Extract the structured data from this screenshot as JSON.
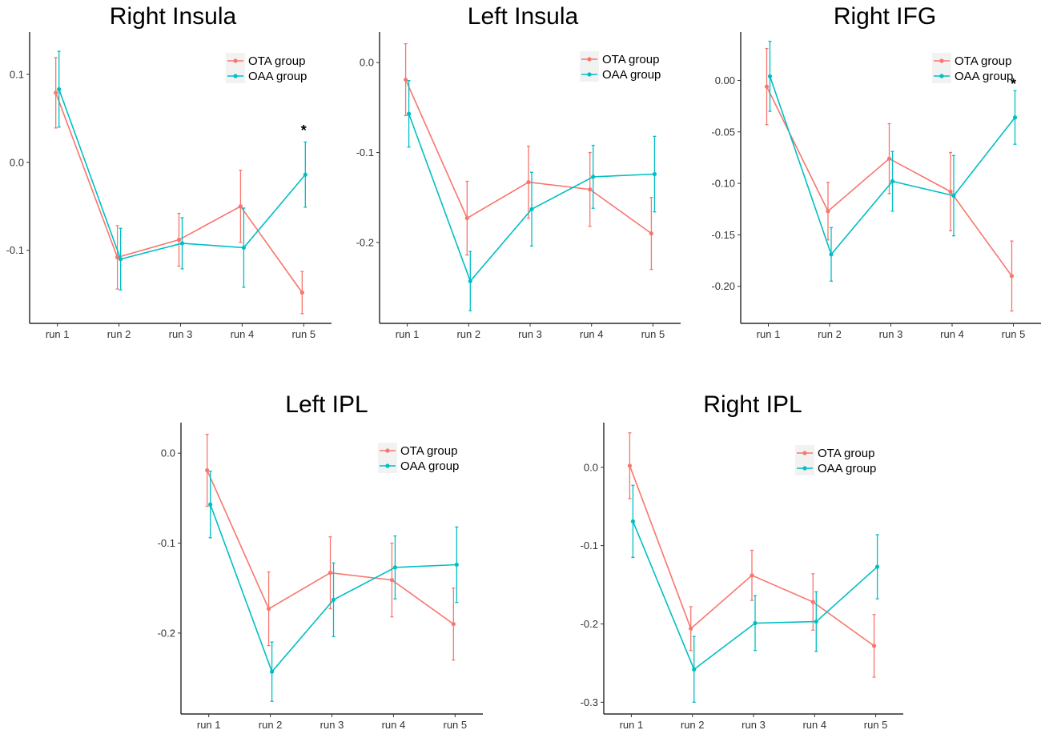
{
  "colors": {
    "ota": "#F8766D",
    "oaa": "#00BFC4",
    "axis": "#000000"
  },
  "chart_data": [
    {
      "type": "line",
      "title": "Right Insula",
      "categories": [
        "run 1",
        "run 2",
        "run 3",
        "run 4",
        "run 5"
      ],
      "ylim": [
        -0.183,
        0.148
      ],
      "yticks": [
        -0.1,
        0.0,
        0.1
      ],
      "ytick_labels": [
        "-0.1",
        "0.0",
        "0.1"
      ],
      "series": [
        {
          "name": "OTA group",
          "values": [
            0.079,
            -0.108,
            -0.088,
            -0.05,
            -0.148
          ],
          "err": [
            0.04,
            0.036,
            0.03,
            0.041,
            0.024
          ]
        },
        {
          "name": "OAA group",
          "values": [
            0.083,
            -0.11,
            -0.092,
            -0.097,
            -0.014
          ],
          "err": [
            0.043,
            0.035,
            0.029,
            0.045,
            0.037
          ]
        }
      ],
      "annotations": [
        {
          "text": "*",
          "x": "run 5",
          "y": 0.038
        }
      ]
    },
    {
      "type": "line",
      "title": "Left Insula",
      "categories": [
        "run 1",
        "run 2",
        "run 3",
        "run 4",
        "run 5"
      ],
      "ylim": [
        -0.29,
        0.034
      ],
      "yticks": [
        -0.2,
        -0.1,
        0.0
      ],
      "ytick_labels": [
        "-0.2",
        "-0.1",
        "0.0"
      ],
      "series": [
        {
          "name": "OTA group",
          "values": [
            -0.019,
            -0.173,
            -0.133,
            -0.141,
            -0.19
          ],
          "err": [
            0.04,
            0.041,
            0.04,
            0.041,
            0.04
          ]
        },
        {
          "name": "OAA group",
          "values": [
            -0.057,
            -0.243,
            -0.163,
            -0.127,
            -0.124
          ],
          "err": [
            0.037,
            0.033,
            0.041,
            0.035,
            0.042
          ]
        }
      ]
    },
    {
      "type": "line",
      "title": "Right IFG",
      "categories": [
        "run 1",
        "run 2",
        "run 3",
        "run 4",
        "run 5"
      ],
      "ylim": [
        -0.236,
        0.047
      ],
      "yticks": [
        -0.2,
        -0.15,
        -0.1,
        -0.05,
        0.0
      ],
      "ytick_labels": [
        "-0.20",
        "-0.15",
        "-0.10",
        "-0.05",
        "0.00"
      ],
      "series": [
        {
          "name": "OTA group",
          "values": [
            -0.006,
            -0.127,
            -0.076,
            -0.108,
            -0.19
          ],
          "err": [
            0.037,
            0.028,
            0.034,
            0.038,
            0.034
          ]
        },
        {
          "name": "OAA group",
          "values": [
            0.004,
            -0.169,
            -0.098,
            -0.112,
            -0.036
          ],
          "err": [
            0.034,
            0.026,
            0.029,
            0.039,
            0.026
          ]
        }
      ],
      "annotations": [
        {
          "text": "*",
          "x": "run 5",
          "y": -0.002
        }
      ]
    },
    {
      "type": "line",
      "title": "Left IPL",
      "categories": [
        "run 1",
        "run 2",
        "run 3",
        "run 4",
        "run 5"
      ],
      "ylim": [
        -0.29,
        0.034
      ],
      "yticks": [
        -0.2,
        -0.1,
        0.0
      ],
      "ytick_labels": [
        "-0.2",
        "-0.1",
        "0.0"
      ],
      "series": [
        {
          "name": "OTA group",
          "values": [
            -0.019,
            -0.173,
            -0.133,
            -0.141,
            -0.19
          ],
          "err": [
            0.04,
            0.041,
            0.04,
            0.041,
            0.04
          ]
        },
        {
          "name": "OAA group",
          "values": [
            -0.057,
            -0.243,
            -0.163,
            -0.127,
            -0.124
          ],
          "err": [
            0.037,
            0.033,
            0.041,
            0.035,
            0.042
          ]
        }
      ]
    },
    {
      "type": "line",
      "title": "Right IPL",
      "categories": [
        "run 1",
        "run 2",
        "run 3",
        "run 4",
        "run 5"
      ],
      "ylim": [
        -0.315,
        0.057
      ],
      "yticks": [
        -0.3,
        -0.2,
        -0.1,
        0.0
      ],
      "ytick_labels": [
        "-0.3",
        "-0.2",
        "-0.1",
        "0.0"
      ],
      "series": [
        {
          "name": "OTA group",
          "values": [
            0.002,
            -0.206,
            -0.138,
            -0.172,
            -0.228
          ],
          "err": [
            0.042,
            0.028,
            0.032,
            0.036,
            0.04
          ]
        },
        {
          "name": "OAA group",
          "values": [
            -0.069,
            -0.258,
            -0.199,
            -0.197,
            -0.127
          ],
          "err": [
            0.046,
            0.042,
            0.035,
            0.038,
            0.041
          ]
        }
      ]
    }
  ]
}
